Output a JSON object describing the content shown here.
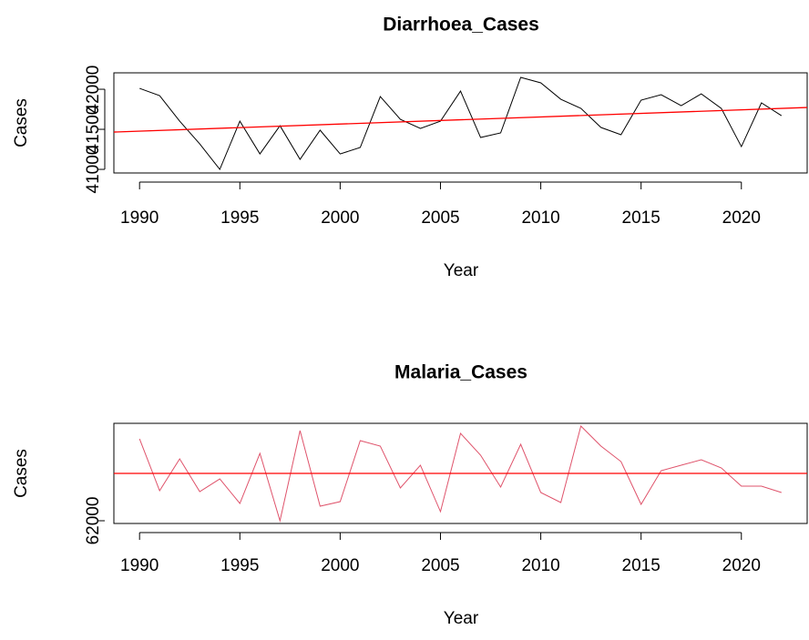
{
  "chart_data": [
    {
      "type": "line",
      "title": "Diarrhoea_Cases",
      "xlabel": "Year",
      "ylabel": "Cases",
      "x": [
        1990,
        1991,
        1992,
        1993,
        1994,
        1995,
        1996,
        1997,
        1998,
        1999,
        2000,
        2001,
        2002,
        2003,
        2004,
        2005,
        2006,
        2007,
        2008,
        2009,
        2010,
        2011,
        2012,
        2013,
        2014,
        2015,
        2016,
        2017,
        2018,
        2019,
        2020,
        2021,
        2022
      ],
      "values": [
        42011,
        41920,
        41602,
        41318,
        41000,
        41602,
        41193,
        41545,
        41125,
        41489,
        41193,
        41273,
        41909,
        41625,
        41511,
        41602,
        41977,
        41398,
        41455,
        42148,
        42080,
        41875,
        41761,
        41523,
        41432,
        41864,
        41932,
        41795,
        41943,
        41761,
        41284,
        41830,
        41670
      ],
      "color": "#000000",
      "trend": {
        "x": [
          1990,
          2022
        ],
        "values": [
          41477,
          41761
        ],
        "color": "#ff0000"
      },
      "xlim": [
        1988.72,
        2023.28
      ],
      "xticks": [
        1990,
        1995,
        2000,
        2005,
        2010,
        2015,
        2020
      ],
      "ylim": [
        40955,
        42205
      ],
      "yticks": [
        41000,
        41500,
        42000
      ]
    },
    {
      "type": "line",
      "title": "Malaria_Cases",
      "xlabel": "Year",
      "ylabel": "Cases",
      "x": [
        1990,
        1991,
        1992,
        1993,
        1994,
        1995,
        1996,
        1997,
        1998,
        1999,
        2000,
        2001,
        2002,
        2003,
        2004,
        2005,
        2006,
        2007,
        2008,
        2009,
        2010,
        2011,
        2012,
        2013,
        2014,
        2015,
        2016,
        2017,
        2018,
        2019,
        2020,
        2021,
        2022
      ],
      "values": [
        64045,
        62750,
        63545,
        62727,
        63045,
        62432,
        63682,
        62000,
        64250,
        62364,
        62477,
        64000,
        63864,
        62818,
        63386,
        62227,
        64182,
        63636,
        62841,
        63909,
        62705,
        62455,
        64364,
        63864,
        63477,
        62409,
        63250,
        63386,
        63523,
        63318,
        62864,
        62864,
        62705
      ],
      "color": "#df536b",
      "trend": {
        "x": [
          1990,
          2022
        ],
        "values": [
          63182,
          63182
        ],
        "color": "#ff0000"
      },
      "xlim": [
        1988.72,
        2023.28
      ],
      "xticks": [
        1990,
        1995,
        2000,
        2005,
        2010,
        2015,
        2020
      ],
      "ylim": [
        61932,
        64432
      ],
      "yticks": [
        62000
      ]
    }
  ]
}
